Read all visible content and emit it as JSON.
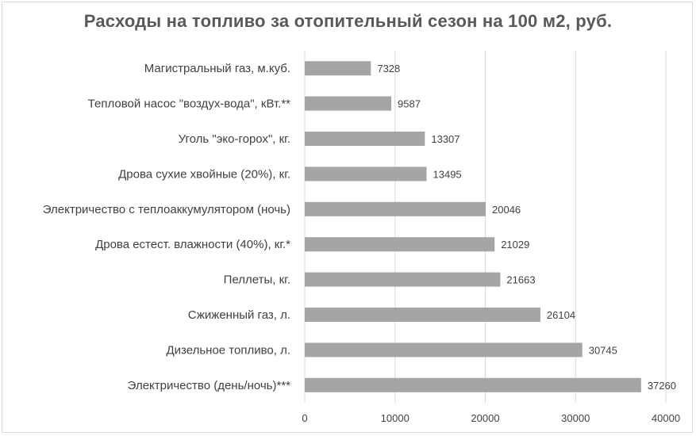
{
  "chart_data": {
    "type": "bar",
    "orientation": "horizontal",
    "title": "Расходы на топливо за отопительный сезон на 100 м2, руб.",
    "categories": [
      "Магистральный газ, м.куб.",
      "Тепловой насос \"воздух-вода\", кВт.**",
      "Уголь \"эко-горох\", кг.",
      "Дрова сухие хвойные (20%), кг.",
      "Электричество с теплоаккумулятором (ночь)",
      "Дрова естест. влажности (40%), кг.*",
      "Пеллеты, кг.",
      "Сжиженный газ, л.",
      "Дизельное топливо, л.",
      "Электричество (день/ночь)***"
    ],
    "values": [
      7328,
      9587,
      13307,
      13495,
      20046,
      21029,
      21663,
      26104,
      30745,
      37260
    ],
    "xlim": [
      0,
      40000
    ],
    "xticks": [
      0,
      10000,
      20000,
      30000,
      40000
    ],
    "xlabel": "",
    "ylabel": "",
    "grid": "vertical",
    "data_labels": true,
    "bar_color": "#a5a5a5",
    "grid_color": "#d9d9d9",
    "text_color": "#404040",
    "title_color": "#595959"
  }
}
